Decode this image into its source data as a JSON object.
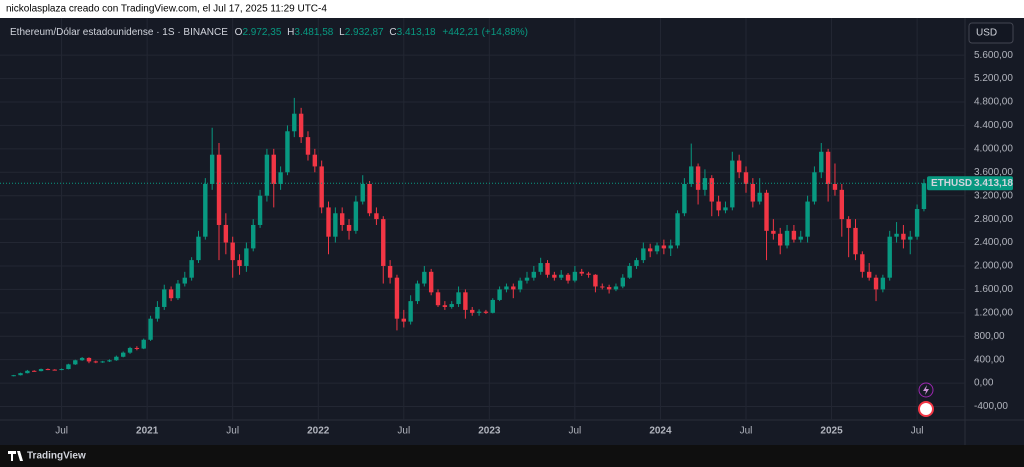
{
  "header": {
    "attribution": "nickolasplaza creado con TradingView.com, el Jul 17, 2025 11:29 UTC-4",
    "symbol": "Ethereum/Dólar estadounidense · 1S · BINANCE",
    "o_label": "O",
    "o": "2.972,35",
    "h_label": "H",
    "h": "3.481,58",
    "l_label": "L",
    "l": "2.932,87",
    "c_label": "C",
    "c": "3.413,18",
    "change": "+442,21 (+14,88%)",
    "currency": "USD",
    "ticker": "ETHUSD",
    "brand": "TradingView"
  },
  "chart_data": {
    "type": "candlestick",
    "up_color": "#089981",
    "down_color": "#f23645",
    "grid": true,
    "xlim": [
      2020.14,
      2025.78
    ],
    "xticks": [
      {
        "value": 2020.5,
        "label": "Jul"
      },
      2021,
      {
        "value": 2021.5,
        "label": "Jul"
      },
      2022,
      {
        "value": 2022.5,
        "label": "Jul"
      },
      2023,
      {
        "value": 2023.5,
        "label": "Jul"
      },
      2024,
      {
        "value": 2024.5,
        "label": "Jul"
      },
      2025,
      {
        "value": 2025.5,
        "label": "Jul"
      }
    ],
    "ylim": [
      -630,
      6200
    ],
    "yticks": [
      {
        "value": -400,
        "label": "-400,00"
      },
      {
        "value": 0,
        "label": "0,00"
      },
      {
        "value": 400,
        "label": "400,00"
      },
      {
        "value": 800,
        "label": "800,00"
      },
      {
        "value": 1200,
        "label": "1.200,00"
      },
      {
        "value": 1600,
        "label": "1.600,00"
      },
      {
        "value": 2000,
        "label": "2.000,00"
      },
      {
        "value": 2400,
        "label": "2.400,00"
      },
      {
        "value": 2800,
        "label": "2.800,00"
      },
      {
        "value": 3200,
        "label": "3.200,00"
      },
      {
        "value": 3600,
        "label": "3.600,00"
      },
      {
        "value": 4000,
        "label": "4.000,00"
      },
      {
        "value": 4400,
        "label": "4.400,00"
      },
      {
        "value": 4800,
        "label": "4.800,00"
      },
      {
        "value": 5200,
        "label": "5.200,00"
      },
      {
        "value": 5600,
        "label": "5.600,00"
      }
    ],
    "x": [
      2020.22,
      2020.26,
      2020.3,
      2020.34,
      2020.38,
      2020.42,
      2020.46,
      2020.5,
      2020.54,
      2020.58,
      2020.62,
      2020.66,
      2020.7,
      2020.74,
      2020.78,
      2020.82,
      2020.86,
      2020.9,
      2020.94,
      2020.98,
      2021.02,
      2021.06,
      2021.1,
      2021.14,
      2021.18,
      2021.22,
      2021.26,
      2021.3,
      2021.34,
      2021.38,
      2021.42,
      2021.46,
      2021.5,
      2021.54,
      2021.58,
      2021.62,
      2021.66,
      2021.7,
      2021.74,
      2021.78,
      2021.82,
      2021.86,
      2021.9,
      2021.94,
      2021.98,
      2022.02,
      2022.06,
      2022.1,
      2022.14,
      2022.18,
      2022.22,
      2022.26,
      2022.3,
      2022.34,
      2022.38,
      2022.42,
      2022.46,
      2022.5,
      2022.54,
      2022.58,
      2022.62,
      2022.66,
      2022.7,
      2022.74,
      2022.78,
      2022.82,
      2022.86,
      2022.9,
      2022.94,
      2022.98,
      2023.02,
      2023.06,
      2023.1,
      2023.14,
      2023.18,
      2023.22,
      2023.26,
      2023.3,
      2023.34,
      2023.38,
      2023.42,
      2023.46,
      2023.5,
      2023.54,
      2023.58,
      2023.62,
      2023.66,
      2023.7,
      2023.74,
      2023.78,
      2023.82,
      2023.86,
      2023.9,
      2023.94,
      2023.98,
      2024.02,
      2024.06,
      2024.1,
      2024.14,
      2024.18,
      2024.22,
      2024.26,
      2024.3,
      2024.34,
      2024.38,
      2024.42,
      2024.46,
      2024.5,
      2024.54,
      2024.58,
      2024.62,
      2024.66,
      2024.7,
      2024.74,
      2024.78,
      2024.82,
      2024.86,
      2024.9,
      2024.94,
      2024.98,
      2025.02,
      2025.06,
      2025.1,
      2025.14,
      2025.18,
      2025.22,
      2025.26,
      2025.3,
      2025.34,
      2025.38,
      2025.42,
      2025.46,
      2025.5,
      2025.54
    ],
    "open": [
      120,
      135,
      170,
      210,
      205,
      240,
      230,
      225,
      240,
      320,
      390,
      430,
      370,
      355,
      370,
      390,
      450,
      520,
      600,
      590,
      740,
      1100,
      1300,
      1600,
      1450,
      1700,
      1800,
      2100,
      2500,
      3400,
      3900,
      2700,
      2400,
      2100,
      2000,
      2300,
      2700,
      3200,
      3900,
      3400,
      3600,
      4300,
      4600,
      4200,
      3900,
      3700,
      3000,
      2500,
      2900,
      2700,
      2600,
      3100,
      3400,
      2900,
      2800,
      2000,
      1800,
      1100,
      1050,
      1400,
      1700,
      1900,
      1550,
      1330,
      1300,
      1350,
      1550,
      1250,
      1200,
      1220,
      1200,
      1420,
      1600,
      1650,
      1600,
      1750,
      1800,
      1900,
      2050,
      1850,
      1800,
      1850,
      1750,
      1900,
      1870,
      1850,
      1650,
      1640,
      1600,
      1650,
      1800,
      2000,
      2100,
      2300,
      2250,
      2350,
      2300,
      2350,
      2900,
      3400,
      3700,
      3300,
      3500,
      3100,
      2950,
      3000,
      3800,
      3600,
      3400,
      3100,
      3250,
      2600,
      2550,
      2350,
      2600,
      2450,
      2500,
      3100,
      3600,
      3950,
      3400,
      3300,
      2800,
      2650,
      2200,
      1900,
      1800,
      1600,
      1800,
      2500,
      2550,
      2450,
      2500,
      2972.35
    ],
    "high": [
      140,
      178,
      225,
      220,
      248,
      250,
      238,
      250,
      330,
      400,
      445,
      440,
      385,
      380,
      405,
      470,
      540,
      620,
      630,
      760,
      1150,
      1400,
      1680,
      1650,
      1760,
      1900,
      2150,
      2600,
      3500,
      4360,
      4100,
      2900,
      2500,
      2200,
      2400,
      2800,
      3300,
      4000,
      4000,
      3700,
      4400,
      4870,
      4700,
      4300,
      4000,
      3800,
      3100,
      3000,
      3000,
      2800,
      3200,
      3550,
      3450,
      3000,
      2850,
      2100,
      1850,
      1250,
      1500,
      1750,
      2000,
      1950,
      1600,
      1400,
      1400,
      1650,
      1600,
      1300,
      1260,
      1250,
      1450,
      1650,
      1700,
      1700,
      1800,
      1900,
      2000,
      2140,
      2100,
      1900,
      1930,
      1880,
      2000,
      1950,
      1900,
      1860,
      1700,
      1680,
      1700,
      1860,
      2050,
      2140,
      2400,
      2380,
      2400,
      2450,
      2450,
      2950,
      3500,
      4090,
      3750,
      3650,
      3550,
      3200,
      3100,
      3950,
      3900,
      3700,
      3500,
      3500,
      3300,
      2800,
      2650,
      2700,
      2700,
      2600,
      3200,
      3700,
      4100,
      4000,
      3750,
      3400,
      2850,
      2800,
      2250,
      2050,
      1850,
      1850,
      2600,
      2750,
      2700,
      2600,
      3050,
      3481.58
    ],
    "low": [
      115,
      130,
      165,
      195,
      200,
      222,
      215,
      220,
      235,
      310,
      380,
      340,
      340,
      345,
      360,
      380,
      440,
      500,
      560,
      580,
      720,
      1050,
      1250,
      1400,
      1420,
      1650,
      1750,
      2050,
      2450,
      3300,
      2100,
      2200,
      1800,
      1850,
      1900,
      2250,
      2650,
      3100,
      3000,
      3300,
      3550,
      4200,
      4100,
      3800,
      3600,
      2900,
      2200,
      2400,
      2600,
      2450,
      2550,
      3050,
      2850,
      2700,
      1700,
      1700,
      900,
      950,
      1000,
      1350,
      1650,
      1500,
      1300,
      1250,
      1270,
      1300,
      1100,
      1150,
      1150,
      1180,
      1190,
      1400,
      1550,
      1450,
      1550,
      1700,
      1750,
      1850,
      1800,
      1750,
      1760,
      1700,
      1720,
      1830,
      1800,
      1550,
      1600,
      1530,
      1570,
      1620,
      1780,
      1950,
      2050,
      2150,
      2200,
      2200,
      2170,
      2300,
      2850,
      3350,
      3050,
      3200,
      2850,
      2850,
      2900,
      2950,
      3500,
      3250,
      3000,
      3050,
      2100,
      2450,
      2200,
      2300,
      2400,
      2400,
      2400,
      3050,
      3500,
      3100,
      3200,
      2500,
      2150,
      2100,
      1800,
      1750,
      1400,
      1550,
      1750,
      2400,
      2300,
      2200,
      2450,
      2932.87
    ],
    "close": [
      135,
      170,
      210,
      205,
      240,
      230,
      225,
      240,
      320,
      390,
      430,
      370,
      355,
      370,
      390,
      450,
      520,
      600,
      590,
      740,
      1100,
      1300,
      1600,
      1450,
      1700,
      1800,
      2100,
      2500,
      3400,
      3900,
      2700,
      2400,
      2100,
      2000,
      2300,
      2700,
      3200,
      3900,
      3400,
      3600,
      4300,
      4600,
      4200,
      3900,
      3700,
      3000,
      2500,
      2900,
      2700,
      2600,
      3100,
      3400,
      2900,
      2800,
      2000,
      1800,
      1100,
      1050,
      1400,
      1700,
      1900,
      1550,
      1330,
      1300,
      1350,
      1550,
      1250,
      1200,
      1220,
      1200,
      1420,
      1600,
      1650,
      1600,
      1750,
      1800,
      1900,
      2050,
      1850,
      1800,
      1850,
      1750,
      1900,
      1870,
      1850,
      1650,
      1640,
      1600,
      1650,
      1800,
      2000,
      2100,
      2300,
      2250,
      2350,
      2300,
      2350,
      2900,
      3400,
      3700,
      3300,
      3500,
      3100,
      2950,
      3000,
      3800,
      3600,
      3400,
      3100,
      3250,
      2600,
      2550,
      2350,
      2600,
      2450,
      2500,
      3100,
      3600,
      3950,
      3400,
      3300,
      2800,
      2650,
      2200,
      1900,
      1800,
      1600,
      1800,
      2500,
      2550,
      2450,
      2500,
      2972.35,
      3413.18
    ]
  }
}
